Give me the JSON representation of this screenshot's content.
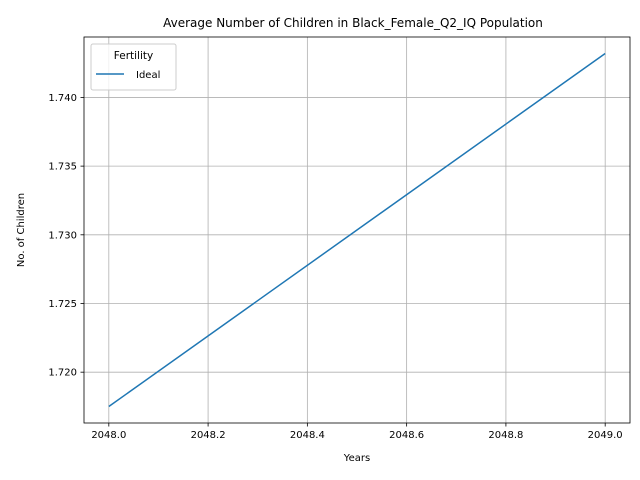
{
  "chart_data": {
    "type": "line",
    "title": "Average Number of Children in Black_Female_Q2_IQ Population",
    "xlabel": "Years",
    "ylabel": "No. of Children",
    "xlim": [
      2047.95,
      2049.05
    ],
    "ylim": [
      1.7163,
      1.7444
    ],
    "x_ticks": [
      2048.0,
      2048.2,
      2048.4,
      2048.6,
      2048.8,
      2049.0
    ],
    "x_tick_labels": [
      "2048.0",
      "2048.2",
      "2048.4",
      "2048.6",
      "2048.8",
      "2049.0"
    ],
    "y_ticks": [
      1.72,
      1.725,
      1.73,
      1.735,
      1.74
    ],
    "y_tick_labels": [
      "1.720",
      "1.725",
      "1.730",
      "1.735",
      "1.740"
    ],
    "grid": true,
    "legend": {
      "title": "Fertility",
      "placement": "top-left"
    },
    "series": [
      {
        "name": "Ideal",
        "color": "#1f77b4",
        "x": [
          2048.0,
          2049.0
        ],
        "y": [
          1.7175,
          1.7432
        ]
      }
    ]
  }
}
